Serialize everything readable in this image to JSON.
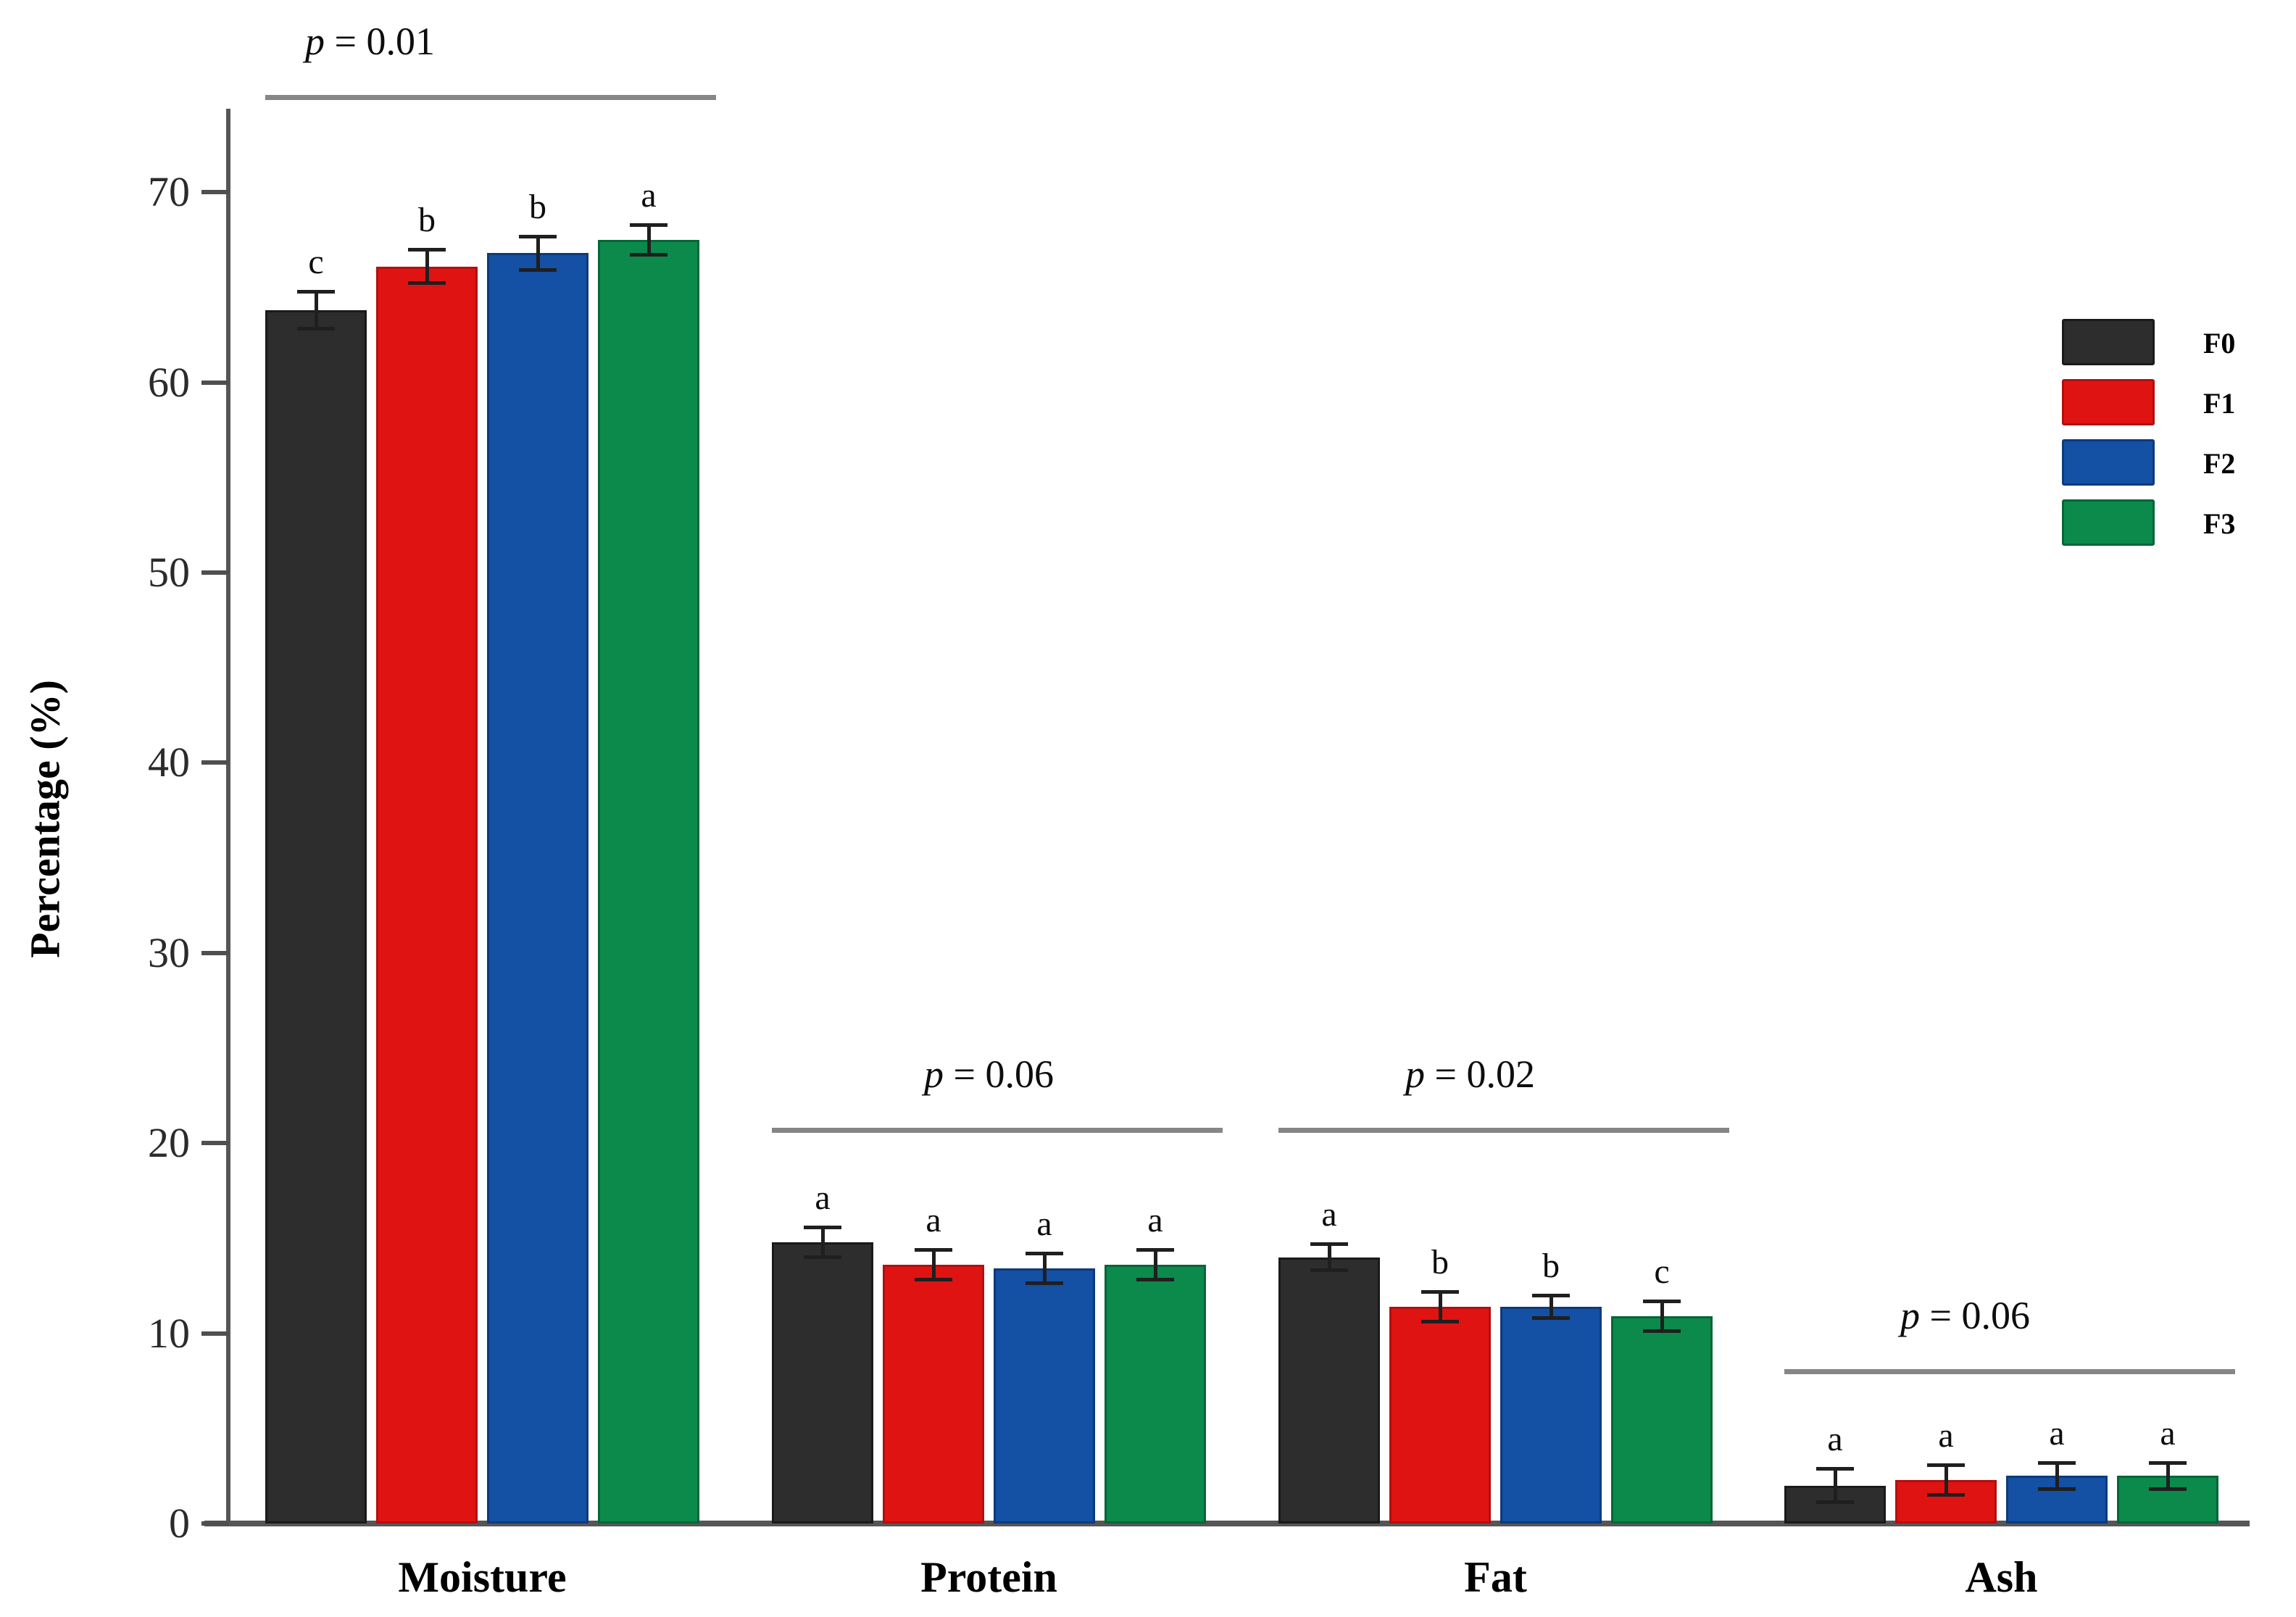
{
  "chart_data": {
    "type": "bar",
    "title": "",
    "xlabel": "",
    "ylabel": "Percentage (%)",
    "ylim": [
      0,
      75
    ],
    "yticks": [
      0,
      10,
      20,
      30,
      40,
      50,
      60,
      70
    ],
    "grid": false,
    "legend_position": "upper-right",
    "categories": [
      "Moisture",
      "Protein",
      "Fat",
      "Ash"
    ],
    "series": [
      {
        "name": "F0",
        "color": "#2d2d2d",
        "border_color": "#1a1a1a",
        "values": [
          63.8,
          14.8,
          14.0,
          2.0
        ],
        "errors": [
          1.0,
          0.8,
          0.7,
          0.9
        ],
        "letters": [
          "c",
          "a",
          "a",
          "a"
        ]
      },
      {
        "name": "F1",
        "color": "#e01313",
        "border_color": "#b30f0f",
        "values": [
          66.1,
          13.6,
          11.4,
          2.3
        ],
        "errors": [
          0.9,
          0.8,
          0.8,
          0.8
        ],
        "letters": [
          "b",
          "a",
          "b",
          "a"
        ]
      },
      {
        "name": "F2",
        "color": "#1450a4",
        "border_color": "#0e3a7c",
        "values": [
          66.8,
          13.4,
          11.4,
          2.5
        ],
        "errors": [
          0.9,
          0.8,
          0.6,
          0.7
        ],
        "letters": [
          "b",
          "a",
          "b",
          "a"
        ]
      },
      {
        "name": "F3",
        "color": "#0b8a4c",
        "border_color": "#076538",
        "values": [
          67.5,
          13.6,
          10.9,
          2.5
        ],
        "errors": [
          0.8,
          0.8,
          0.8,
          0.7
        ],
        "letters": [
          "a",
          "a",
          "c",
          "a"
        ]
      }
    ],
    "significance": [
      {
        "category": "Moisture",
        "p_text": "p = 0.01",
        "line_value": 75.0
      },
      {
        "category": "Protein",
        "p_text": "p = 0.06",
        "line_value": 20.7
      },
      {
        "category": "Fat",
        "p_text": "p = 0.02",
        "line_value": 20.7
      },
      {
        "category": "Ash",
        "p_text": "p = 0.06",
        "line_value": 8.0
      }
    ]
  }
}
